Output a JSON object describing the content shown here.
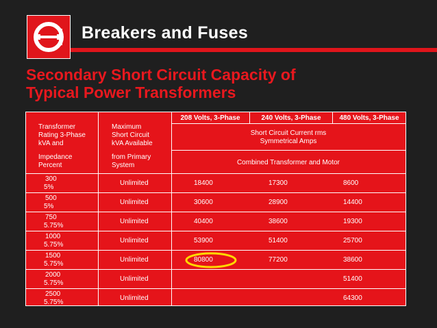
{
  "header": {
    "title": "Breakers and Fuses",
    "logo_icon": "cutler-hammer-logo-icon",
    "accent_color": "#e0151b"
  },
  "subtitle": {
    "line1": "Secondary Short Circuit Capacity of",
    "line2": "Typical Power Transformers"
  },
  "table": {
    "voltage_headers": [
      "208 Volts, 3-Phase",
      "240 Volts, 3-Phase",
      "480 Volts, 3-Phase"
    ],
    "col1_header": [
      "Transformer",
      "Rating 3-Phase",
      "kVA and",
      "Impedance",
      "Percent"
    ],
    "col2_header": [
      "Maximum",
      "Short Circuit",
      "kVA Available",
      "from Primary",
      "System"
    ],
    "sc_current_label": [
      "Short Circuit Current rms",
      "Symmetrical Amps"
    ],
    "combined_label": "Combined Transformer and Motor",
    "rows": [
      {
        "kva": "300",
        "imp": "5%",
        "avail": "Unlimited",
        "v208": "18400",
        "v240": "17300",
        "v480": "8600"
      },
      {
        "kva": "500",
        "imp": "5%",
        "avail": "Unlimited",
        "v208": "30600",
        "v240": "28900",
        "v480": "14400"
      },
      {
        "kva": "750",
        "imp": "5.75%",
        "avail": "Unlimited",
        "v208": "40400",
        "v240": "38600",
        "v480": "19300"
      },
      {
        "kva": "1000",
        "imp": "5.75%",
        "avail": "Unlimited",
        "v208": "53900",
        "v240": "51400",
        "v480": "25700"
      },
      {
        "kva": "1500",
        "imp": "5.75%",
        "avail": "Unlimited",
        "v208": "80800",
        "v240": "77200",
        "v480": "38600"
      },
      {
        "kva": "2000",
        "imp": "5.75%",
        "avail": "Unlimited",
        "v208": "",
        "v240": "",
        "v480": "51400"
      },
      {
        "kva": "2500",
        "imp": "5.75%",
        "avail": "Unlimited",
        "v208": "",
        "v240": "",
        "v480": "64300"
      }
    ],
    "highlight": {
      "row": 4,
      "column": "v208",
      "color": "#ffd800"
    }
  }
}
